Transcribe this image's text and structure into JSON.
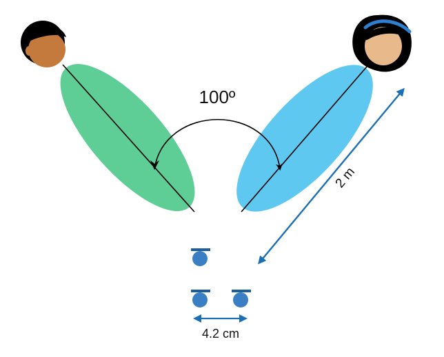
{
  "angle_label": "100º",
  "distance_label": "2 m",
  "mic_spacing_label": "4.2 cm",
  "colors": {
    "left_beam": "#5ece96",
    "right_beam": "#5ec8f0",
    "arrow_blue": "#1a6fb5",
    "mic_fill": "#3a7fc4",
    "mic_bar": "#1f5e9c",
    "line": "#000000",
    "skin_left": "#c47a3c",
    "skin_right": "#e8b98a",
    "hair": "#000000",
    "headband": "#2f7fd0"
  },
  "icons": {
    "left_person": "male-face-icon",
    "right_person": "female-face-icon",
    "microphone": "microphone-icon"
  }
}
